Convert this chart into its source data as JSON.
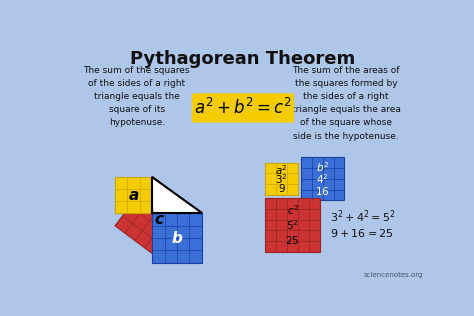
{
  "title": "Pythagorean Theorem",
  "title_fontsize": 13,
  "title_fontweight": "bold",
  "bg_color": "#aec6e8",
  "left_text": "The sum of the squares\nof the sides of a right\ntriangle equals the\nsquare of its\nhypotenuse.",
  "right_text": "The sum of the areas of\nthe squares formed by\nthe sides of a right\ntriangle equals the area\nof the square whose\nside is the hypotenuse.",
  "formula_text": "$a^2 + b^2 = c^2$",
  "formula_bg": "#f5cc00",
  "eq1_text": "$3^2 + 4^2 = 5^2$",
  "eq2_text": "$9 + 16 = 25$",
  "watermark": "sciencenotes.org",
  "yellow_color": "#f5cc00",
  "blue_color": "#3a6fd8",
  "red_color": "#cc3333",
  "dark_text": "#111111",
  "grid_yellow": "#c8a800",
  "grid_blue": "#1a3fa0",
  "grid_red": "#992222",
  "scale_a": 3,
  "scale_b": 4,
  "scale_c": 5,
  "unit": 16
}
